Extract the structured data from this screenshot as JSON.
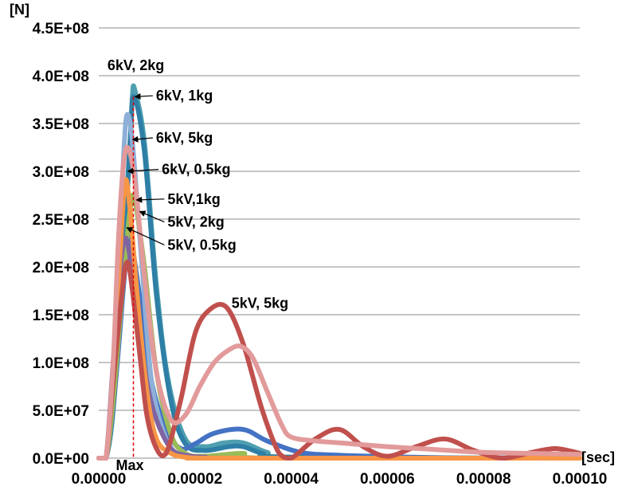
{
  "chart_data": {
    "type": "line",
    "title": "",
    "xlabel": "",
    "ylabel": "",
    "x_unit": "[sec]",
    "y_unit": "[N]",
    "xlim": [
      0,
      0.0001
    ],
    "ylim": [
      0,
      450000000
    ],
    "x_ticks": [
      "0.00000",
      "0.00002",
      "0.00004",
      "0.00006",
      "0.00008",
      "0.00010"
    ],
    "y_ticks": [
      "0.0E+00",
      "5.0E+07",
      "1.0E+08",
      "1.5E+08",
      "2.0E+08",
      "2.5E+08",
      "3.0E+08",
      "3.5E+08",
      "4.0E+08",
      "4.5E+08"
    ],
    "grid": "horizontal",
    "legend": "none",
    "series": [
      {
        "name": "6kV, 2kg",
        "color": "#4f9fb0",
        "x": [
          0.0,
          1.5e-06,
          3e-06,
          4.8e-06,
          6.5e-06,
          7e-06,
          7.5e-06,
          9.5e-06,
          1.2e-05,
          1.45e-05,
          1.8e-05,
          2.2e-05,
          2.6e-05,
          3e-05,
          3.5e-05,
          4e-05,
          0.0001
        ],
        "y": [
          0,
          0,
          60000000,
          200000000,
          330000000,
          380000000,
          385000000,
          330000000,
          180000000,
          80000000,
          20000000,
          12000000,
          16000000,
          16000000,
          6000000,
          1000000,
          0
        ]
      },
      {
        "name": "6kV, 1kg",
        "color": "#2e7fa6",
        "x": [
          0.0,
          1.5e-06,
          3e-06,
          5e-06,
          6.5e-06,
          7.3e-06,
          9.5e-06,
          1.2e-05,
          1.5e-05,
          1.8e-05,
          2.2e-05,
          2.7e-05,
          3e-05,
          3.4e-05,
          4e-05,
          0.0001
        ],
        "y": [
          0,
          0,
          50000000,
          190000000,
          330000000,
          378000000,
          320000000,
          170000000,
          60000000,
          15000000,
          8000000,
          12000000,
          12000000,
          5000000,
          1000000,
          0
        ]
      },
      {
        "name": "6kV, 5kg",
        "color": "#4472c4",
        "x": [
          0.0,
          1.5e-06,
          3.5e-06,
          5.5e-06,
          6.5e-06,
          8.5e-06,
          1.1e-05,
          1.4e-05,
          1.7e-05,
          2e-05,
          2.4e-05,
          3e-05,
          3.5e-05,
          4.2e-05,
          5e-05,
          6.5e-05,
          7.7e-05
        ],
        "y": [
          0,
          0,
          80000000,
          200000000,
          230000000,
          170000000,
          80000000,
          30000000,
          10000000,
          15000000,
          26000000,
          30000000,
          18000000,
          6000000,
          3000000,
          1000000,
          0
        ]
      },
      {
        "name": "6kV, 0.5kg",
        "color": "#8eb0d8",
        "x": [
          0.0,
          1.5e-06,
          3e-06,
          4e-06,
          5e-06,
          5.8e-06,
          7e-06,
          9e-06,
          1.1e-05,
          1.4e-05,
          1.7e-05,
          2e-05,
          2.5e-05,
          3e-05,
          0.0001
        ],
        "y": [
          0,
          0,
          80000000,
          200000000,
          300000000,
          358000000,
          330000000,
          200000000,
          80000000,
          20000000,
          3000000,
          1000000,
          1000000,
          0,
          0
        ]
      },
      {
        "name": "5kV,1kg",
        "color": "#9bbb59",
        "x": [
          0.0,
          1.5e-06,
          3e-06,
          5e-06,
          6.5e-06,
          7.5e-06,
          9.5e-06,
          1.2e-05,
          1.5e-05,
          1.8e-05,
          2.2e-05,
          3e-05,
          3.5e-05,
          0.0001
        ],
        "y": [
          0,
          0,
          60000000,
          180000000,
          260000000,
          270000000,
          200000000,
          90000000,
          25000000,
          5000000,
          2000000,
          5000000,
          0,
          0
        ]
      },
      {
        "name": "5kV, 2kg",
        "color": "#8064a2",
        "x": [
          0.0,
          1.5e-06,
          3e-06,
          4.5e-06,
          5.5e-06,
          6.5e-06,
          8e-06,
          1e-05,
          1.2e-05,
          1.5e-05,
          1.8e-05,
          2.2e-05,
          3e-05,
          0.0001
        ],
        "y": [
          0,
          0,
          100000000,
          200000000,
          230000000,
          210000000,
          150000000,
          80000000,
          40000000,
          10000000,
          3000000,
          1000000,
          0,
          0
        ]
      },
      {
        "name": "5kV, 0.5kg",
        "color": "#f79646",
        "x": [
          0.0,
          1.5e-06,
          3e-06,
          4.5e-06,
          5.5e-06,
          6.5e-06,
          8e-06,
          1e-05,
          1.2e-05,
          1.5e-05,
          1.8e-05,
          2.1e-05,
          2.5e-05,
          0.0001
        ],
        "y": [
          0,
          0,
          90000000,
          220000000,
          290000000,
          260000000,
          170000000,
          70000000,
          20000000,
          5000000,
          1000000,
          0,
          0,
          0
        ]
      },
      {
        "name": "5kV, 5kg",
        "color": "#c0504d",
        "x": [
          0.0,
          1.5e-06,
          3e-06,
          5e-06,
          6e-06,
          7e-06,
          8.5e-06,
          1e-05,
          1.2e-05,
          1.4e-05,
          1.7e-05,
          2e-05,
          2.3e-05,
          2.65e-05,
          3e-05,
          3.4e-05,
          3.75e-05,
          4e-05,
          4.5e-05,
          5e-05,
          5.5e-05,
          6e-05,
          6.6e-05,
          7.2e-05,
          7.8e-05,
          8.4e-05,
          9e-05,
          9.5e-05,
          0.0001
        ],
        "y": [
          0,
          0,
          80000000,
          180000000,
          205000000,
          175000000,
          110000000,
          45000000,
          10000000,
          5000000,
          60000000,
          130000000,
          155000000,
          158000000,
          120000000,
          50000000,
          5000000,
          0,
          20000000,
          30000000,
          12000000,
          2000000,
          12000000,
          20000000,
          8000000,
          0,
          6000000,
          10000000,
          5000000
        ]
      },
      {
        "name": "",
        "color": "#e29a9a",
        "x": [
          0.0,
          1.5e-06,
          3e-06,
          4e-06,
          5e-06,
          6e-06,
          7.5e-06,
          9.5e-06,
          1.2e-05,
          1.5e-05,
          1.8e-05,
          2.1e-05,
          2.4e-05,
          2.7e-05,
          2.95e-05,
          3.2e-05,
          3.5e-05,
          3.8e-05,
          4e-05,
          4.5e-05,
          5e-05,
          6e-05,
          7e-05,
          8e-05,
          9e-05,
          0.0001
        ],
        "y": [
          0,
          0,
          100000000,
          220000000,
          300000000,
          325000000,
          290000000,
          190000000,
          90000000,
          40000000,
          45000000,
          75000000,
          100000000,
          113000000,
          117000000,
          105000000,
          70000000,
          35000000,
          22000000,
          18000000,
          16000000,
          12000000,
          9000000,
          6000000,
          5000000,
          4000000
        ]
      }
    ],
    "annotations": [
      {
        "text": "6kV, 2kg",
        "tx": 1.8e-06,
        "ty": 406000000
      },
      {
        "text": "6kV, 1kg",
        "tx": 1.19e-05,
        "ty": 374000000,
        "ax": 7.2e-06,
        "ay": 378000000
      },
      {
        "text": "6kV, 5kg",
        "tx": 1.19e-05,
        "ty": 330000000,
        "ax": 6.7e-06,
        "ay": 333000000
      },
      {
        "text": "6kV, 0.5kg",
        "tx": 1.31e-05,
        "ty": 297000000,
        "ax": 5.7e-06,
        "ay": 300000000
      },
      {
        "text": "5kV,1kg",
        "tx": 1.43e-05,
        "ty": 266000000,
        "ax": 7.5e-06,
        "ay": 270000000
      },
      {
        "text": "5kV, 2kg",
        "tx": 1.43e-05,
        "ty": 242000000,
        "ax": 8.2e-06,
        "ay": 258000000
      },
      {
        "text": "5kV, 0.5kg",
        "tx": 1.43e-05,
        "ty": 218000000,
        "ax": 5.5e-06,
        "ay": 241000000
      },
      {
        "text": "5kV, 5kg",
        "tx": 2.76e-05,
        "ty": 157000000
      }
    ],
    "max_marker": {
      "label": "Max",
      "x": 7.2e-06
    }
  }
}
